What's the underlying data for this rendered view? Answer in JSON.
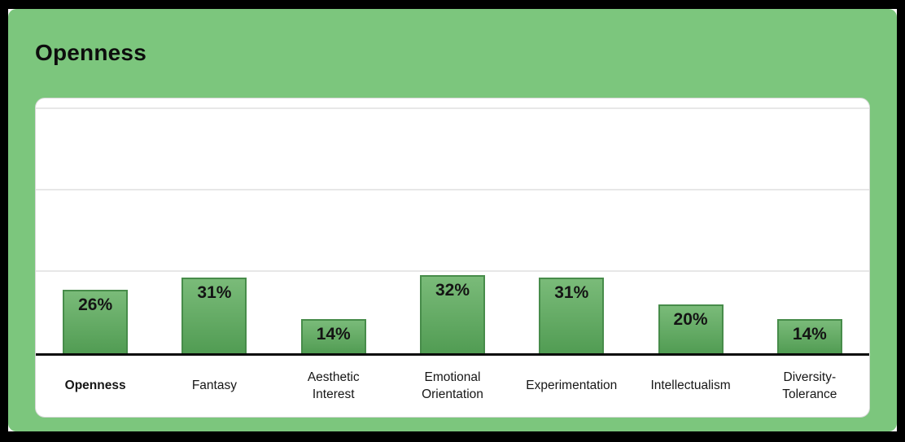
{
  "title": "Openness",
  "colors": {
    "frame": "#000000",
    "panel_green": "#7cc67d",
    "card_bg": "#ffffff",
    "card_border": "#d9d9d9",
    "gridline": "#e7e7e7",
    "axis_line": "#0a0a0a",
    "bar_top": "#7abb79",
    "bar_bottom": "#519c53",
    "bar_border": "#478c4a",
    "text_dark": "#141414"
  },
  "chart_data": {
    "type": "bar",
    "title": "Openness",
    "categories": [
      "Openness",
      "Fantasy",
      "Aesthetic Interest",
      "Emotional Orientation",
      "Experimentation",
      "Intellectualism",
      "Diversity-Tolerance"
    ],
    "values": [
      26,
      31,
      14,
      32,
      31,
      20,
      14
    ],
    "value_labels": [
      "26%",
      "31%",
      "14%",
      "32%",
      "31%",
      "20%",
      "14%"
    ],
    "label_lines": [
      [
        "Openness"
      ],
      [
        "Fantasy"
      ],
      [
        "Aesthetic",
        "Interest"
      ],
      [
        "Emotional",
        "Orientation"
      ],
      [
        "Experimentation"
      ],
      [
        "Intellectualism"
      ],
      [
        "Diversity-",
        "Tolerance"
      ]
    ],
    "emphasized_category": "Openness",
    "xlabel": "",
    "ylabel": "",
    "ylim": [
      0,
      100
    ],
    "gridlines_pct": [
      33.3,
      66.7,
      100
    ],
    "legend": false,
    "value_suffix": "%"
  }
}
